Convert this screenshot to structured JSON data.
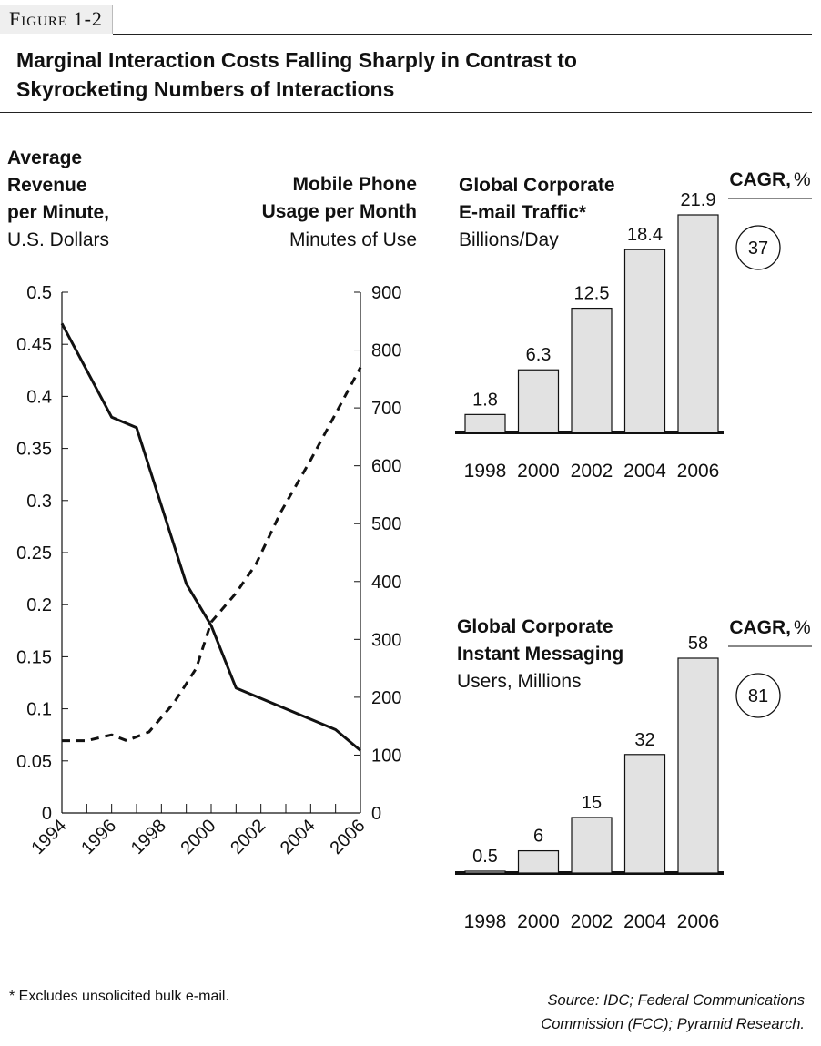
{
  "figure_label": "Figure 1-2",
  "title_line1": "Marginal Interaction Costs Falling Sharply in Contrast to",
  "title_line2": "Skyrocketing Numbers of Interactions",
  "footnote": "* Excludes unsolicited bulk e-mail.",
  "source_line1": "Source: IDC; Federal Communications",
  "source_line2": "Commission (FCC); Pyramid Research.",
  "chart_data": [
    {
      "type": "line",
      "left_axis_title": [
        "Average",
        "Revenue",
        "per Minute,"
      ],
      "left_axis_unit": "U.S. Dollars",
      "right_axis_title": [
        "Mobile Phone",
        "Usage per Month"
      ],
      "right_axis_unit": "Minutes of Use",
      "xlim": [
        1994,
        2006
      ],
      "x_ticks": [
        "1994",
        "1996",
        "1998",
        "2000",
        "2002",
        "2004",
        "2006"
      ],
      "left_ylim": [
        0,
        0.5
      ],
      "left_ticks": [
        "0",
        "0.05",
        "0.1",
        "0.15",
        "0.2",
        "0.25",
        "0.3",
        "0.35",
        "0.4",
        "0.45",
        "0.5"
      ],
      "right_ylim": [
        0,
        900
      ],
      "right_ticks": [
        "0",
        "100",
        "200",
        "300",
        "400",
        "500",
        "600",
        "700",
        "800",
        "900"
      ],
      "series": [
        {
          "name": "Average Revenue per Minute",
          "axis": "left",
          "style": "solid",
          "x": [
            1994,
            1996,
            1997,
            1999,
            2000,
            2001,
            2005,
            2006
          ],
          "y": [
            0.47,
            0.38,
            0.37,
            0.22,
            0.18,
            0.12,
            0.08,
            0.06
          ]
        },
        {
          "name": "Mobile Phone Usage per Month",
          "axis": "right",
          "style": "dashed",
          "x": [
            1994,
            1995,
            1996,
            1996.6,
            1997.5,
            1998.5,
            1999.4,
            2000,
            2001,
            2001.8,
            2002.8,
            2004,
            2005,
            2006
          ],
          "y": [
            125,
            125,
            135,
            125,
            140,
            190,
            250,
            330,
            380,
            430,
            520,
            610,
            690,
            770
          ]
        }
      ]
    },
    {
      "type": "bar",
      "title": [
        "Global Corporate",
        "E-mail Traffic*"
      ],
      "unit": "Billions/Day",
      "categories": [
        "1998",
        "2000",
        "2002",
        "2004",
        "2006"
      ],
      "values": [
        1.8,
        6.3,
        12.5,
        18.4,
        21.9
      ],
      "value_labels": [
        "1.8",
        "6.3",
        "12.5",
        "18.4",
        "21.9"
      ],
      "ylim": [
        0,
        21.9
      ],
      "cagr_label": "CAGR,",
      "cagr_unit": "%",
      "cagr_value": "37"
    },
    {
      "type": "bar",
      "title": [
        "Global Corporate",
        "Instant Messaging"
      ],
      "unit": "Users, Millions",
      "categories": [
        "1998",
        "2000",
        "2002",
        "2004",
        "2006"
      ],
      "values": [
        0.5,
        6,
        15,
        32,
        58
      ],
      "value_labels": [
        "0.5",
        "6",
        "15",
        "32",
        "58"
      ],
      "ylim": [
        0,
        58
      ],
      "cagr_label": "CAGR,",
      "cagr_unit": "%",
      "cagr_value": "81"
    }
  ],
  "colors": {
    "bar_fill": "#e2e2e2",
    "ink": "#111111"
  }
}
